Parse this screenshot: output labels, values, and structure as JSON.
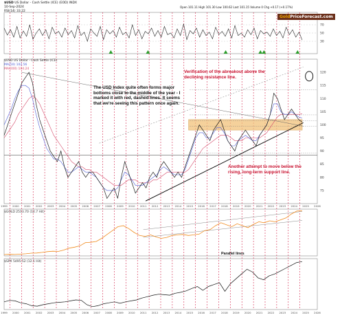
{
  "header": {
    "ticker": "$USD",
    "subtitle": "US Dollar - Cash Settle (ICE) (EOD) INDX",
    "date": "10-Sep-2024",
    "rsi_label": "RSI(14) 33.22",
    "stats_line": "Open 101.11 High 101.30 Low 100.62 Last 101.15 Volume 0 Chg +0.17 (+0.17%)"
  },
  "brand": {
    "part1": "Gold",
    "part2": "PriceForecast.com",
    "part1_color": "#e8a000",
    "part2_color": "#ffffff",
    "bg_color": "#6b2f1a"
  },
  "annotations": {
    "usd_pattern": "The USD Index quite often forms major bottoms close to the middle of the year - I marked it with red, dashed lines. It seems that we're seeing this pattern once again.",
    "breakout": "Verification of the abreakout above the declining resistance line.",
    "support": "Another attempt to move below the rising, long-term support line.",
    "parallel": "Parallel lines"
  },
  "legends": {
    "main": "$USD US Dollar - Cash Settle (ICE)",
    "sma_a": "MA(50) 102.56",
    "sma_b": "MA(200) 104.24",
    "gold_panel": "$GOLD 2513.70 (12.7 Hit)",
    "spx_panel": "$SPX 5495.52 (12.1 Hit)"
  },
  "colors": {
    "red_dashed": "#d0103a",
    "gold_line": "#f08a1c",
    "resistance_zone": "#f2c27a",
    "support_line": "#000000",
    "sma_blue": "#4b5bd6",
    "sma_red": "#d54a6a"
  },
  "chart_data": [
    {
      "type": "line",
      "panel": "RSI",
      "x_start": 1999,
      "x_end": 2024.7,
      "ylim": [
        0,
        100
      ],
      "y_ticks": [
        30,
        50,
        70
      ],
      "values": [
        62,
        45,
        58,
        40,
        66,
        38,
        55,
        42,
        70,
        35,
        50,
        60,
        44,
        58,
        36,
        64,
        48,
        54,
        40,
        62,
        46,
        56,
        38,
        68,
        44,
        52,
        30,
        60,
        50,
        42,
        66,
        34,
        58,
        48,
        56,
        40,
        64,
        46,
        52,
        38,
        70,
        44,
        58,
        36,
        54,
        48,
        62,
        42,
        56,
        40,
        66,
        46,
        50,
        38,
        60,
        44,
        72,
        34,
        56,
        48,
        62,
        40,
        58,
        44,
        52,
        36,
        64,
        46,
        54,
        42,
        60,
        38,
        68,
        44,
        50,
        40,
        58,
        46,
        62,
        36,
        56,
        48,
        52,
        42,
        60,
        44,
        54,
        38,
        64,
        46,
        58,
        40,
        52,
        33
      ],
      "markers_up_years": [
        2008.2,
        2011.4,
        2018.1,
        2021.1,
        2021.4,
        2024.3
      ]
    },
    {
      "type": "line",
      "panel": "USD Index",
      "x_start": 1999,
      "x_end": 2024.7,
      "ylim": [
        70,
        125
      ],
      "y_ticks": [
        75,
        80,
        85,
        90,
        95,
        100,
        105,
        110,
        115,
        120
      ],
      "values": [
        96,
        100,
        104,
        108,
        112,
        116,
        118,
        120,
        116,
        108,
        102,
        98,
        94,
        90,
        88,
        86,
        90,
        84,
        80,
        82,
        84,
        86,
        82,
        80,
        82,
        82,
        80,
        78,
        76,
        72,
        74,
        76,
        72,
        80,
        86,
        82,
        78,
        74,
        76,
        78,
        76,
        80,
        82,
        80,
        84,
        86,
        84,
        82,
        80,
        82,
        80,
        84,
        88,
        92,
        96,
        100,
        98,
        96,
        94,
        98,
        100,
        102,
        98,
        94,
        92,
        90,
        94,
        96,
        98,
        96,
        94,
        92,
        96,
        98,
        100,
        104,
        112,
        110,
        106,
        102,
        104,
        106,
        104,
        102,
        101
      ],
      "sma_fast": [
        100,
        103,
        106,
        110,
        113,
        115,
        115,
        114,
        110,
        104,
        99,
        95,
        91,
        89,
        87,
        87,
        86,
        84,
        82,
        82,
        83,
        84,
        83,
        82,
        82,
        81,
        80,
        78,
        76,
        75,
        75,
        75,
        76,
        79,
        82,
        81,
        79,
        77,
        77,
        77,
        78,
        79,
        80,
        81,
        83,
        84,
        83,
        82,
        81,
        81,
        81,
        83,
        87,
        91,
        95,
        97,
        97,
        95,
        95,
        97,
        99,
        99,
        97,
        94,
        92,
        92,
        94,
        95,
        96,
        95,
        94,
        94,
        96,
        98,
        100,
        104,
        108,
        108,
        105,
        104,
        104,
        105,
        104,
        103,
        102.6
      ],
      "sma_slow": [
        95,
        97,
        99,
        101,
        104,
        106,
        108,
        110,
        111,
        110,
        108,
        105,
        102,
        99,
        96,
        94,
        92,
        90,
        88,
        86,
        85,
        84,
        84,
        83,
        83,
        82,
        82,
        81,
        80,
        79,
        78,
        77,
        77,
        77,
        78,
        79,
        79,
        79,
        78,
        78,
        78,
        78,
        79,
        79,
        80,
        81,
        82,
        82,
        82,
        82,
        82,
        82,
        83,
        85,
        87,
        89,
        91,
        92,
        93,
        94,
        95,
        96,
        96,
        96,
        95,
        94,
        94,
        94,
        95,
        95,
        95,
        95,
        95,
        96,
        97,
        99,
        101,
        103,
        104,
        104,
        104,
        104,
        104,
        104,
        104.2
      ],
      "red_dashed_years": [
        1999.5,
        2000.5,
        2001.5,
        2002.5,
        2003.5,
        2004.5,
        2005.5,
        2006.5,
        2007.5,
        2008.5,
        2009.5,
        2010.5,
        2011.5,
        2012.5,
        2013.5,
        2014.5,
        2015.5,
        2016.5,
        2017.5,
        2018.5,
        2019.5,
        2020.5,
        2021.5,
        2022.5,
        2023.5,
        2024.5
      ],
      "resistance_zone": [
        98,
        102
      ],
      "dotted_levels": [
        113.3,
        103.8,
        101.5,
        99.5,
        89.2
      ]
    },
    {
      "type": "line",
      "panel": "GOLD",
      "x_start": 1999,
      "x_end": 2024.7,
      "ylim": [
        200,
        2600
      ],
      "values": [
        270,
        280,
        275,
        290,
        310,
        340,
        350,
        380,
        420,
        440,
        430,
        500,
        600,
        650,
        720,
        880,
        900,
        940,
        1100,
        1300,
        1500,
        1700,
        1750,
        1600,
        1400,
        1250,
        1200,
        1280,
        1180,
        1100,
        1150,
        1250,
        1280,
        1300,
        1250,
        1280,
        1320,
        1500,
        1550,
        1750,
        1900,
        1800,
        1700,
        1850,
        1750,
        1650,
        1820,
        1950,
        1900,
        2000,
        1950,
        2050,
        2150,
        2350,
        2500,
        2513
      ],
      "parallel_lines": true
    },
    {
      "type": "line",
      "panel": "SPX",
      "x_start": 1999,
      "x_end": 2024.7,
      "ylim": [
        500,
        5800
      ],
      "values": [
        1300,
        1450,
        1400,
        1200,
        1100,
        900,
        850,
        1000,
        1100,
        1200,
        1250,
        1300,
        1400,
        1500,
        1450,
        1000,
        800,
        900,
        1100,
        1200,
        1300,
        1150,
        1300,
        1400,
        1500,
        1700,
        1850,
        2000,
        2100,
        2050,
        2000,
        2200,
        2300,
        2450,
        2700,
        2900,
        2500,
        2900,
        3100,
        3300,
        2400,
        3200,
        3700,
        4200,
        4700,
        4400,
        3800,
        3600,
        4000,
        4200,
        4500,
        4800,
        5100,
        5400,
        5495
      ]
    }
  ],
  "x_axis_years": [
    "1999",
    "2000",
    "2001",
    "2002",
    "2003",
    "2004",
    "2005",
    "2006",
    "2007",
    "2008",
    "2009",
    "2010",
    "2011",
    "2012",
    "2013",
    "2014",
    "2015",
    "2016",
    "2017",
    "2018",
    "2019",
    "2020",
    "2021",
    "2022",
    "2023",
    "2024",
    "2025",
    "2026"
  ]
}
